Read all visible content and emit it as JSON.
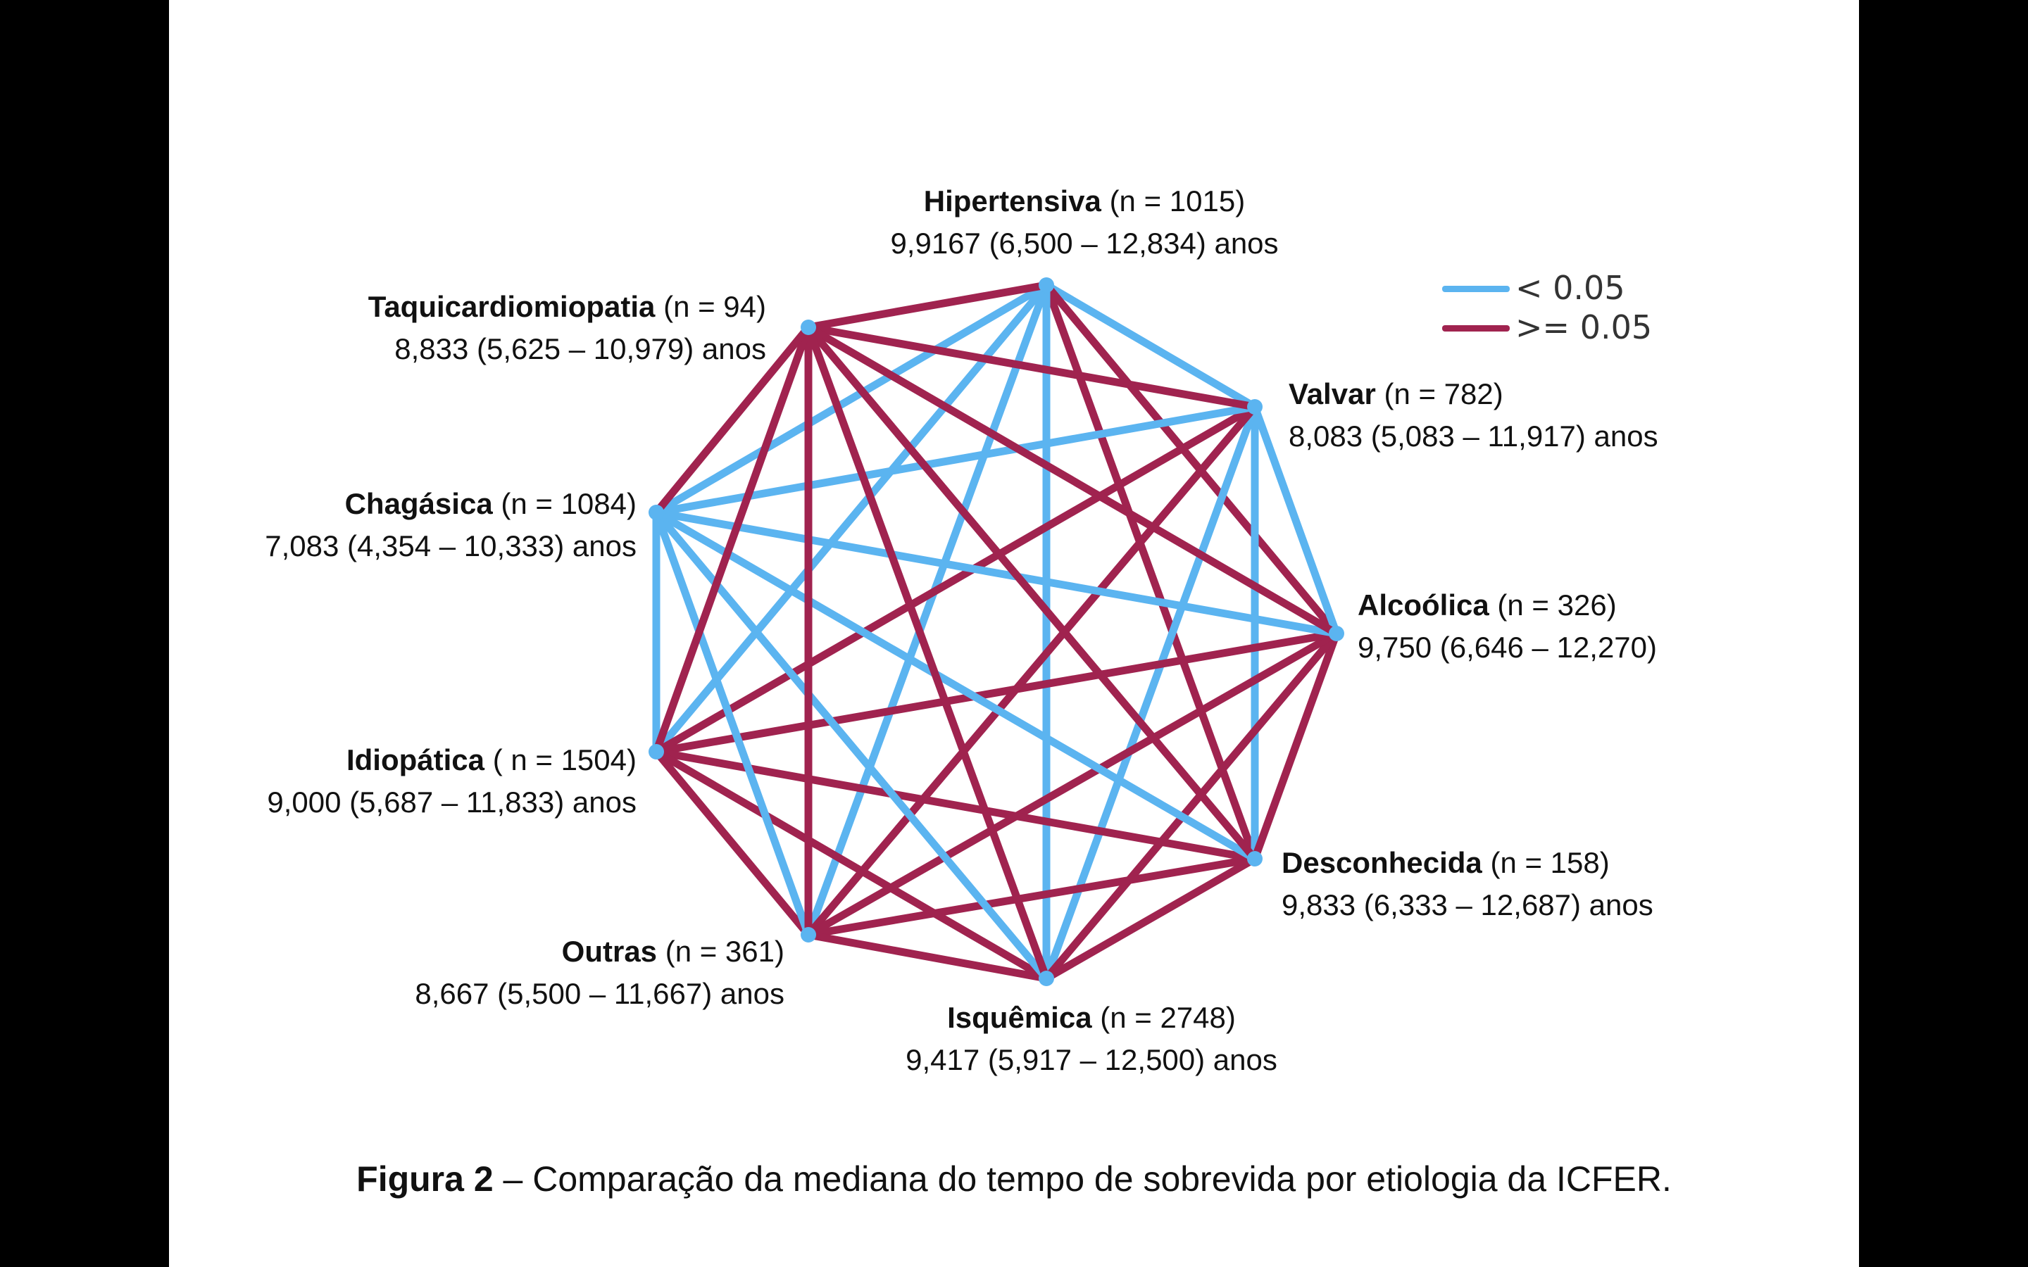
{
  "colors": {
    "significant": "#5bb4f0",
    "not_significant": "#a0234f",
    "node": "#5bb4f0"
  },
  "legend": [
    {
      "key": "significant",
      "label": "< 0.05"
    },
    {
      "key": "not_significant",
      "label": ">= 0.05"
    }
  ],
  "nodes": [
    {
      "id": "hipertensiva",
      "name": "Hipertensiva",
      "n": "(n = 1015)",
      "median": "9,9167 (6,500 – 12,834) anos"
    },
    {
      "id": "valvar",
      "name": "Valvar",
      "n": "(n = 782)",
      "median": "8,083 (5,083 – 11,917) anos"
    },
    {
      "id": "alcoolica",
      "name": "Alcoólica",
      "n": "(n = 326)",
      "median": "9,750 (6,646 – 12,270)"
    },
    {
      "id": "desconhecida",
      "name": "Desconhecida",
      "n": "(n = 158)",
      "median": "9,833 (6,333 – 12,687) anos"
    },
    {
      "id": "isquemica",
      "name": "Isquêmica",
      "n": "(n = 2748)",
      "median": "9,417 (5,917 – 12,500) anos"
    },
    {
      "id": "outras",
      "name": "Outras",
      "n": "(n = 361)",
      "median": "8,667 (5,500 – 11,667) anos"
    },
    {
      "id": "idiopatica",
      "name": "Idiopática",
      "n": "( n = 1504)",
      "median": "9,000 (5,687 – 11,833) anos"
    },
    {
      "id": "chagasica",
      "name": "Chagásica",
      "n": "(n = 1084)",
      "median": "7,083 (4,354 – 10,333) anos"
    },
    {
      "id": "taquicardiomiopatia",
      "name": "Taquicardiomiopatia",
      "n": "(n = 94)",
      "median": "8,833 (5,625 – 10,979) anos"
    }
  ],
  "edges": [
    {
      "from": "hipertensiva",
      "to": "valvar",
      "p": "significant"
    },
    {
      "from": "hipertensiva",
      "to": "alcoolica",
      "p": "not_significant"
    },
    {
      "from": "hipertensiva",
      "to": "desconhecida",
      "p": "not_significant"
    },
    {
      "from": "hipertensiva",
      "to": "isquemica",
      "p": "significant"
    },
    {
      "from": "hipertensiva",
      "to": "outras",
      "p": "significant"
    },
    {
      "from": "hipertensiva",
      "to": "idiopatica",
      "p": "significant"
    },
    {
      "from": "hipertensiva",
      "to": "chagasica",
      "p": "significant"
    },
    {
      "from": "hipertensiva",
      "to": "taquicardiomiopatia",
      "p": "not_significant"
    },
    {
      "from": "valvar",
      "to": "alcoolica",
      "p": "significant"
    },
    {
      "from": "valvar",
      "to": "desconhecida",
      "p": "significant"
    },
    {
      "from": "valvar",
      "to": "isquemica",
      "p": "significant"
    },
    {
      "from": "valvar",
      "to": "outras",
      "p": "not_significant"
    },
    {
      "from": "valvar",
      "to": "idiopatica",
      "p": "not_significant"
    },
    {
      "from": "valvar",
      "to": "chagasica",
      "p": "significant"
    },
    {
      "from": "valvar",
      "to": "taquicardiomiopatia",
      "p": "not_significant"
    },
    {
      "from": "alcoolica",
      "to": "desconhecida",
      "p": "not_significant"
    },
    {
      "from": "alcoolica",
      "to": "isquemica",
      "p": "not_significant"
    },
    {
      "from": "alcoolica",
      "to": "outras",
      "p": "not_significant"
    },
    {
      "from": "alcoolica",
      "to": "idiopatica",
      "p": "not_significant"
    },
    {
      "from": "alcoolica",
      "to": "chagasica",
      "p": "significant"
    },
    {
      "from": "alcoolica",
      "to": "taquicardiomiopatia",
      "p": "not_significant"
    },
    {
      "from": "desconhecida",
      "to": "isquemica",
      "p": "not_significant"
    },
    {
      "from": "desconhecida",
      "to": "outras",
      "p": "not_significant"
    },
    {
      "from": "desconhecida",
      "to": "idiopatica",
      "p": "not_significant"
    },
    {
      "from": "desconhecida",
      "to": "chagasica",
      "p": "significant"
    },
    {
      "from": "desconhecida",
      "to": "taquicardiomiopatia",
      "p": "not_significant"
    },
    {
      "from": "isquemica",
      "to": "outras",
      "p": "not_significant"
    },
    {
      "from": "isquemica",
      "to": "idiopatica",
      "p": "not_significant"
    },
    {
      "from": "isquemica",
      "to": "chagasica",
      "p": "significant"
    },
    {
      "from": "isquemica",
      "to": "taquicardiomiopatia",
      "p": "not_significant"
    },
    {
      "from": "outras",
      "to": "idiopatica",
      "p": "not_significant"
    },
    {
      "from": "outras",
      "to": "chagasica",
      "p": "significant"
    },
    {
      "from": "outras",
      "to": "taquicardiomiopatia",
      "p": "not_significant"
    },
    {
      "from": "idiopatica",
      "to": "chagasica",
      "p": "significant"
    },
    {
      "from": "idiopatica",
      "to": "taquicardiomiopatia",
      "p": "not_significant"
    },
    {
      "from": "chagasica",
      "to": "taquicardiomiopatia",
      "p": "not_significant"
    }
  ],
  "caption": {
    "label": "Figura 2",
    "text": " – Comparação da mediana do tempo de sobrevida por etiologia da ICFER."
  }
}
